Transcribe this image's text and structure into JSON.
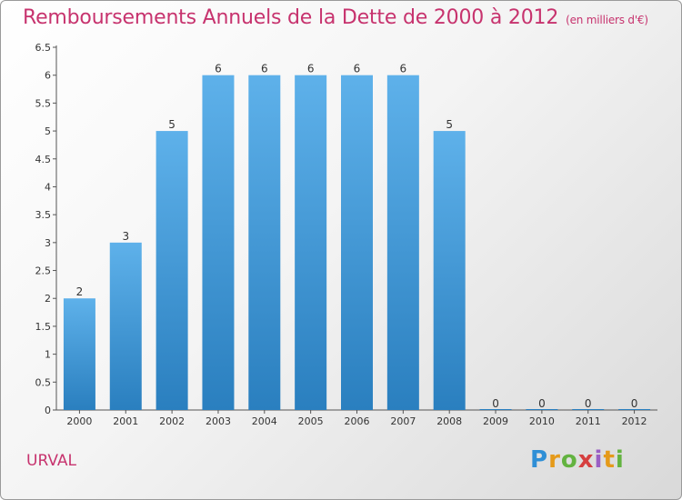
{
  "header": {
    "title": "Remboursements Annuels de la Dette de 2000 à 2012",
    "unit": "(en milliers d'€)"
  },
  "footer": {
    "commune": "URVAL"
  },
  "logo": {
    "text": "Proxiti"
  },
  "colors": {
    "title": "#c7336e",
    "bar_top": "#5eb1ea",
    "bar_bottom": "#2a7fbf"
  },
  "chart_data": {
    "type": "bar",
    "title": "Remboursements Annuels de la Dette de 2000 à 2012",
    "categories": [
      "2000",
      "2001",
      "2002",
      "2003",
      "2004",
      "2005",
      "2006",
      "2007",
      "2008",
      "2009",
      "2010",
      "2011",
      "2012"
    ],
    "values": [
      2,
      3,
      5,
      6,
      6,
      6,
      6,
      6,
      5,
      0,
      0,
      0,
      0
    ],
    "data_labels": [
      "2",
      "3",
      "5",
      "6",
      "6",
      "6",
      "6",
      "6",
      "5",
      "0",
      "0",
      "0",
      "0"
    ],
    "yticks": [
      "0",
      "0.5",
      "1",
      "1.5",
      "2",
      "2.5",
      "3",
      "3.5",
      "4",
      "4.5",
      "5",
      "5.5",
      "6",
      "6.5"
    ],
    "ylim": [
      0,
      6.5
    ],
    "grid": false,
    "legend": "none"
  }
}
